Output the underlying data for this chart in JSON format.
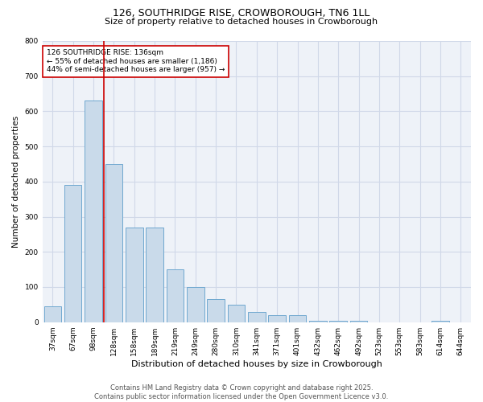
{
  "title": "126, SOUTHRIDGE RISE, CROWBOROUGH, TN6 1LL",
  "subtitle": "Size of property relative to detached houses in Crowborough",
  "xlabel": "Distribution of detached houses by size in Crowborough",
  "ylabel": "Number of detached properties",
  "categories": [
    "37sqm",
    "67sqm",
    "98sqm",
    "128sqm",
    "158sqm",
    "189sqm",
    "219sqm",
    "249sqm",
    "280sqm",
    "310sqm",
    "341sqm",
    "371sqm",
    "401sqm",
    "432sqm",
    "462sqm",
    "492sqm",
    "523sqm",
    "553sqm",
    "583sqm",
    "614sqm",
    "644sqm"
  ],
  "values": [
    45,
    390,
    630,
    450,
    270,
    270,
    150,
    100,
    65,
    50,
    30,
    20,
    20,
    5,
    5,
    5,
    0,
    0,
    0,
    5,
    0
  ],
  "bar_color": "#c9daea",
  "bar_edge_color": "#6fa8d0",
  "grid_color": "#d0d8e8",
  "bg_color": "#eef2f8",
  "vline_x_index": 2,
  "vline_color": "#cc0000",
  "annotation_text": "126 SOUTHRIDGE RISE: 136sqm\n← 55% of detached houses are smaller (1,186)\n44% of semi-detached houses are larger (957) →",
  "annotation_box_color": "#cc0000",
  "footer_text": "Contains HM Land Registry data © Crown copyright and database right 2025.\nContains public sector information licensed under the Open Government Licence v3.0.",
  "ylim": [
    0,
    800
  ],
  "title_fontsize": 9,
  "subtitle_fontsize": 8,
  "xlabel_fontsize": 8,
  "ylabel_fontsize": 7.5,
  "tick_fontsize": 6.5,
  "annotation_fontsize": 6.5,
  "footer_fontsize": 6
}
